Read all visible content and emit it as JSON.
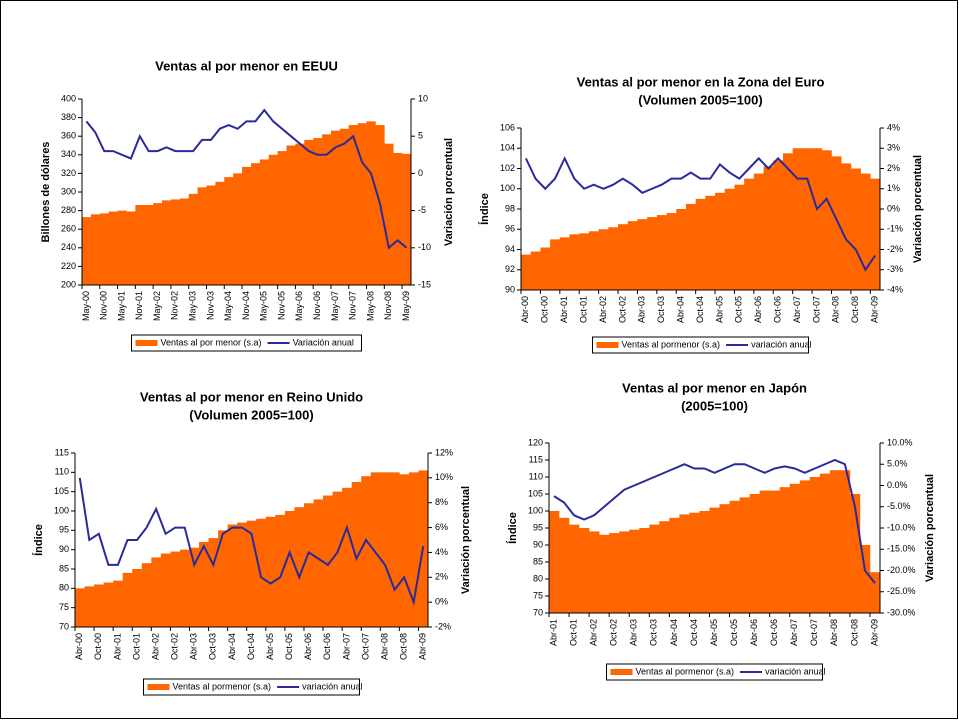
{
  "chart_data": [
    {
      "type": "combo",
      "title": "Ventas al por menor en EEUU",
      "ylabel": "Billones de dólares",
      "y2label": "Variación porcentual",
      "categories": [
        "May-00",
        null,
        "Nov-00",
        null,
        "May-01",
        null,
        "Nov-01",
        null,
        "May-02",
        null,
        "Nov-02",
        null,
        "May-03",
        null,
        "Nov-03",
        null,
        "May-04",
        null,
        "Nov-04",
        null,
        "May-05",
        null,
        "Nov-05",
        null,
        "May-06",
        null,
        "Nov-06",
        null,
        "May-07",
        null,
        "Nov-07",
        null,
        "May-08",
        null,
        "Nov-08",
        null,
        "May-09"
      ],
      "series": [
        {
          "name": "Ventas al por menor (s.a)",
          "type": "bar",
          "color": "#ff6600",
          "values": [
            273,
            276,
            277,
            279,
            280,
            279,
            286,
            286,
            288,
            291,
            292,
            293,
            298,
            305,
            307,
            311,
            316,
            320,
            327,
            331,
            335,
            340,
            344,
            350,
            352,
            356,
            358,
            362,
            366,
            368,
            372,
            374,
            376,
            372,
            352,
            342,
            341
          ]
        },
        {
          "name": "Variación anual",
          "type": "line",
          "axis": "y2",
          "color": "#2a2a9a",
          "values": [
            7,
            5.5,
            3,
            3,
            2.5,
            2,
            5,
            3,
            3,
            3.5,
            3,
            3,
            3,
            4.5,
            4.5,
            6,
            6.5,
            6,
            7,
            7,
            8.5,
            7,
            6,
            5,
            4,
            3,
            2.5,
            2.5,
            3.5,
            4,
            5,
            1.5,
            0,
            -4,
            -10,
            -9,
            -10
          ]
        }
      ],
      "ylim": [
        200,
        400
      ],
      "yticks": [
        200,
        220,
        240,
        260,
        280,
        300,
        320,
        340,
        360,
        380,
        400
      ],
      "y2lim": [
        -15,
        10
      ],
      "y2ticks": [
        -15,
        -10,
        -5,
        0,
        5,
        10
      ]
    },
    {
      "type": "combo",
      "title": "Ventas al por menor en la Zona del Euro",
      "subtitle": "(Volumen 2005=100)",
      "ylabel": "Índice",
      "y2label": "Variación porcentual",
      "categories": [
        "Abr-00",
        null,
        "Oct-00",
        null,
        "Abr-01",
        null,
        "Oct-01",
        null,
        "Abr-02",
        null,
        "Oct-02",
        null,
        "Abr-03",
        null,
        "Oct-03",
        null,
        "Abr-04",
        null,
        "Oct-04",
        null,
        "Abr-05",
        null,
        "Oct-05",
        null,
        "Abr-06",
        null,
        "Oct-06",
        null,
        "Abr-07",
        null,
        "Oct-07",
        null,
        "Abr-08",
        null,
        "Oct-08",
        null,
        "Abr-09"
      ],
      "series": [
        {
          "name": "Ventas al pormenor (s.a)",
          "type": "bar",
          "color": "#ff6600",
          "values": [
            93.5,
            93.8,
            94.2,
            95,
            95.2,
            95.5,
            95.6,
            95.8,
            96,
            96.2,
            96.5,
            96.8,
            97,
            97.2,
            97.4,
            97.6,
            98,
            98.5,
            99,
            99.3,
            99.6,
            100,
            100.4,
            101,
            101.5,
            102.2,
            102.8,
            103.5,
            104,
            104,
            104,
            103.8,
            103.2,
            102.5,
            102,
            101.5,
            101
          ]
        },
        {
          "name": "variación anual",
          "type": "line",
          "axis": "y2",
          "color": "#2a2a9a",
          "values": [
            2.5,
            1.5,
            1,
            1.5,
            2.5,
            1.5,
            1,
            1.2,
            1,
            1.2,
            1.5,
            1.2,
            0.8,
            1,
            1.2,
            1.5,
            1.5,
            1.8,
            1.5,
            1.5,
            2.2,
            1.8,
            1.5,
            2,
            2.5,
            2,
            2.5,
            2,
            1.5,
            1.5,
            0,
            0.5,
            -0.5,
            -1.5,
            -2,
            -3,
            -2.3
          ]
        }
      ],
      "ylim": [
        90,
        106
      ],
      "yticks": [
        90,
        92,
        94,
        96,
        98,
        100,
        102,
        104,
        106
      ],
      "y2lim": [
        -4,
        4
      ],
      "y2ticks": [
        {
          "value": -4,
          "label": "-4%"
        },
        {
          "value": -3,
          "label": "-3%"
        },
        {
          "value": -2,
          "label": "-2%"
        },
        {
          "value": -1,
          "label": "-1%"
        },
        {
          "value": 0,
          "label": "0%"
        },
        {
          "value": 1,
          "label": "1%"
        },
        {
          "value": 2,
          "label": "2%"
        },
        {
          "value": 3,
          "label": "3%"
        },
        {
          "value": 4,
          "label": "4%"
        }
      ]
    },
    {
      "type": "combo",
      "title": "Ventas al por menor en Reino Unido",
      "subtitle": "(Volumen 2005=100)",
      "ylabel": "Índice",
      "y2label": "Variación porcentual",
      "categories": [
        "Abr-00",
        null,
        "Oct-00",
        null,
        "Abr-01",
        null,
        "Oct-01",
        null,
        "Abr-02",
        null,
        "Oct-02",
        null,
        "Abr-03",
        null,
        "Oct-03",
        null,
        "Abr-04",
        null,
        "Oct-04",
        null,
        "Abr-05",
        null,
        "Oct-05",
        null,
        "Abr-06",
        null,
        "Oct-06",
        null,
        "Abr-07",
        null,
        "Oct-07",
        null,
        "Abr-08",
        null,
        "Oct-08",
        null,
        "Abr-09"
      ],
      "series": [
        {
          "name": "Ventas al pormenor (s.a)",
          "type": "bar",
          "color": "#ff6600",
          "values": [
            80,
            80.5,
            81,
            81.5,
            82,
            84,
            85,
            86.5,
            88,
            89,
            89.5,
            90,
            90.5,
            92,
            93,
            95,
            96.5,
            97,
            97.5,
            98,
            98.5,
            99,
            100,
            101,
            102,
            103,
            104,
            105,
            106,
            107.5,
            109,
            110,
            110,
            110,
            109.5,
            110,
            110.5
          ]
        },
        {
          "name": "variación anual",
          "type": "line",
          "axis": "y2",
          "color": "#2a2a9a",
          "values": [
            10,
            5,
            5.5,
            3,
            3,
            5,
            5,
            6,
            7.5,
            5.5,
            6,
            6,
            3,
            4.5,
            3,
            5.5,
            6,
            6,
            5.5,
            2,
            1.5,
            2,
            4,
            2,
            4,
            3.5,
            3,
            4,
            6,
            3.5,
            5,
            4,
            3,
            1,
            2,
            0,
            4.5
          ]
        }
      ],
      "ylim": [
        70,
        115
      ],
      "yticks": [
        70,
        75,
        80,
        85,
        90,
        95,
        100,
        105,
        110,
        115
      ],
      "y2lim": [
        -2,
        12
      ],
      "y2ticks": [
        {
          "value": -2,
          "label": "-2%"
        },
        {
          "value": 0,
          "label": "0%"
        },
        {
          "value": 2,
          "label": "2%"
        },
        {
          "value": 4,
          "label": "4%"
        },
        {
          "value": 6,
          "label": "6%"
        },
        {
          "value": 8,
          "label": "8%"
        },
        {
          "value": 10,
          "label": "10%"
        },
        {
          "value": 12,
          "label": "12%"
        }
      ]
    },
    {
      "type": "combo",
      "title": "Ventas al por menor en Japón",
      "subtitle": "(2005=100)",
      "ylabel": "Índice",
      "y2label": "Variación porcentual",
      "categories": [
        "Abr-01",
        null,
        "Oct-01",
        null,
        "Abr-02",
        null,
        "Oct-02",
        null,
        "Abr-03",
        null,
        "Oct-03",
        null,
        "Abr-04",
        null,
        "Oct-04",
        null,
        "Abr-05",
        null,
        "Oct-05",
        null,
        "Abr-06",
        null,
        "Oct-06",
        null,
        "Abr-07",
        null,
        "Oct-07",
        null,
        "Abr-08",
        null,
        "Oct-08",
        null,
        "Abr-09"
      ],
      "series": [
        {
          "name": "Ventas al pormenor (s.a)",
          "type": "bar",
          "color": "#ff6600",
          "values": [
            100,
            98,
            96,
            95,
            94,
            93,
            93.5,
            94,
            94.5,
            95,
            96,
            97,
            98,
            99,
            99.5,
            100,
            101,
            102,
            103,
            104,
            105,
            106,
            106,
            107,
            108,
            109,
            110,
            111,
            112,
            112,
            105,
            90,
            82
          ]
        },
        {
          "name": "variación anual",
          "type": "line",
          "axis": "y2",
          "color": "#2a2a9a",
          "values": [
            -2.5,
            -4,
            -7,
            -8,
            -7,
            -5,
            -3,
            -1,
            0,
            1,
            2,
            3,
            4,
            5,
            4,
            4,
            3,
            4,
            5,
            5,
            4,
            3,
            4,
            4.5,
            4,
            3,
            4,
            5,
            6,
            5,
            -5,
            -20,
            -23
          ]
        }
      ],
      "ylim": [
        70,
        120
      ],
      "yticks": [
        70,
        75,
        80,
        85,
        90,
        95,
        100,
        105,
        110,
        115,
        120
      ],
      "y2lim": [
        -30,
        10
      ],
      "y2ticks": [
        {
          "value": -30,
          "label": "-30.0%"
        },
        {
          "value": -25,
          "label": "-25.0%"
        },
        {
          "value": -20,
          "label": "-20.0%"
        },
        {
          "value": -15,
          "label": "-15.0%"
        },
        {
          "value": -10,
          "label": "-10.0%"
        },
        {
          "value": -5,
          "label": "-5.0%"
        },
        {
          "value": 0,
          "label": "0.0%"
        },
        {
          "value": 5,
          "label": "5.0%"
        },
        {
          "value": 10,
          "label": "10.0%"
        }
      ]
    }
  ]
}
